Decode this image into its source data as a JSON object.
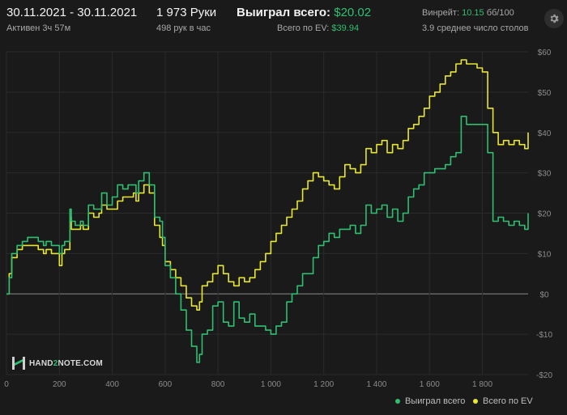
{
  "header": {
    "date_range": "30.11.2021 - 30.11.2021",
    "active_time": "Активен 3ч 57м",
    "hands": "1 973 Руки",
    "hands_per_hour": "498 рук в час",
    "won_label": "Выиграл всего:",
    "won_value": "$20.02",
    "ev_label": "Всего по EV:",
    "ev_value": "$39.94",
    "winrate_label": "Винрейт:",
    "winrate_value": "10.15",
    "winrate_unit": "бб/100",
    "tables": "3.9 среднее число столов"
  },
  "logo": {
    "pre": "HAND",
    "mid": "2",
    "post": "NOTE.COM"
  },
  "settings_icon": "gear-icon",
  "colors": {
    "won": "#2fbf71",
    "ev": "#e6e633",
    "background": "#1a1a1a",
    "grid": "#2b2b2b",
    "zero": "#8a8a8a"
  },
  "chart_data": {
    "type": "line",
    "xlim": [
      0,
      1973
    ],
    "ylim": [
      -20,
      60
    ],
    "x_ticks": [
      0,
      200,
      400,
      600,
      800,
      1000,
      1200,
      1400,
      1600,
      1800
    ],
    "x_tick_labels": [
      "0",
      "200",
      "400",
      "600",
      "800",
      "1 000",
      "1 200",
      "1 400",
      "1 600",
      "1 800"
    ],
    "y_ticks": [
      -20,
      -10,
      0,
      10,
      20,
      30,
      40,
      50,
      60
    ],
    "y_tick_labels": [
      "-$20",
      "-$10",
      "$0",
      "$10",
      "$20",
      "$30",
      "$40",
      "$50",
      "$60"
    ],
    "legend_position": "bottom-right",
    "grid": true,
    "series": [
      {
        "name": "Выиграл всего",
        "color": "#2fbf71",
        "x": [
          0,
          10,
          20,
          40,
          60,
          80,
          100,
          120,
          140,
          150,
          170,
          200,
          210,
          220,
          240,
          245,
          260,
          280,
          290,
          310,
          330,
          350,
          360,
          380,
          400,
          420,
          440,
          460,
          480,
          490,
          500,
          520,
          540,
          560,
          580,
          590,
          600,
          620,
          640,
          660,
          680,
          700,
          720,
          730,
          740,
          760,
          780,
          800,
          820,
          840,
          860,
          880,
          900,
          920,
          940,
          960,
          980,
          1000,
          1020,
          1040,
          1060,
          1080,
          1100,
          1120,
          1140,
          1160,
          1180,
          1200,
          1220,
          1240,
          1260,
          1280,
          1300,
          1320,
          1340,
          1360,
          1380,
          1400,
          1420,
          1440,
          1460,
          1480,
          1500,
          1520,
          1540,
          1560,
          1580,
          1600,
          1620,
          1640,
          1660,
          1680,
          1700,
          1720,
          1740,
          1760,
          1780,
          1800,
          1820,
          1840,
          1860,
          1880,
          1900,
          1920,
          1940,
          1960,
          1973
        ],
        "y": [
          0,
          4,
          10,
          12,
          13,
          14,
          14,
          13,
          12,
          13,
          12,
          10,
          12,
          13,
          21,
          18,
          17,
          18,
          17,
          22,
          21,
          21,
          25,
          22,
          24,
          27,
          26,
          27,
          27,
          25,
          28,
          30,
          27,
          19,
          18,
          14,
          7,
          4,
          0,
          -4,
          -9,
          -13,
          -17,
          -15,
          -10,
          -9,
          -3,
          -2,
          -7,
          -8,
          -2,
          -6,
          -7,
          -5,
          -8,
          -8,
          -9,
          -10,
          -8,
          -7,
          -2,
          0,
          2,
          5,
          5,
          9,
          12,
          13,
          15,
          14,
          16,
          16,
          17,
          15,
          17,
          22,
          20,
          21,
          22,
          19,
          21,
          18,
          20,
          24,
          26,
          27,
          30,
          30,
          31,
          31,
          32,
          34,
          35,
          44,
          42,
          42,
          42,
          42,
          35,
          18,
          19,
          18,
          17,
          18,
          17,
          16,
          20
        ]
      },
      {
        "name": "Всего по EV",
        "color": "#e6e633",
        "x": [
          0,
          10,
          20,
          40,
          60,
          80,
          100,
          120,
          140,
          150,
          170,
          200,
          210,
          220,
          240,
          245,
          260,
          280,
          290,
          310,
          330,
          350,
          360,
          380,
          400,
          420,
          440,
          460,
          480,
          490,
          500,
          520,
          540,
          560,
          580,
          590,
          600,
          620,
          640,
          660,
          680,
          700,
          720,
          730,
          740,
          760,
          780,
          800,
          820,
          840,
          860,
          880,
          900,
          920,
          940,
          960,
          980,
          1000,
          1020,
          1040,
          1060,
          1080,
          1100,
          1120,
          1140,
          1160,
          1180,
          1200,
          1220,
          1240,
          1260,
          1280,
          1300,
          1320,
          1340,
          1360,
          1380,
          1400,
          1420,
          1440,
          1460,
          1480,
          1500,
          1520,
          1540,
          1560,
          1580,
          1600,
          1620,
          1640,
          1660,
          1680,
          1700,
          1720,
          1740,
          1760,
          1780,
          1800,
          1820,
          1840,
          1860,
          1880,
          1900,
          1920,
          1940,
          1960,
          1973
        ],
        "y": [
          0,
          5,
          9,
          11,
          12,
          12,
          12,
          11,
          10,
          11,
          10,
          7,
          10,
          11,
          19,
          16,
          16,
          17,
          16,
          20,
          19,
          20,
          22,
          21,
          21,
          23,
          24,
          24,
          25,
          23,
          25,
          27,
          25,
          17,
          14,
          12,
          8,
          6,
          4,
          2,
          -1,
          -3,
          -4,
          -2,
          2,
          3,
          5,
          7,
          5,
          3,
          2,
          4,
          3,
          4,
          6,
          8,
          10,
          13,
          15,
          17,
          19,
          21,
          23,
          26,
          28,
          30,
          29,
          28,
          27,
          26,
          29,
          32,
          31,
          30,
          32,
          36,
          35,
          37,
          38,
          35,
          37,
          36,
          38,
          41,
          42,
          44,
          46,
          49,
          50,
          52,
          54,
          55,
          57,
          58,
          57,
          57,
          56,
          55,
          46,
          40,
          37,
          38,
          37,
          38,
          37,
          36,
          40
        ]
      }
    ]
  }
}
